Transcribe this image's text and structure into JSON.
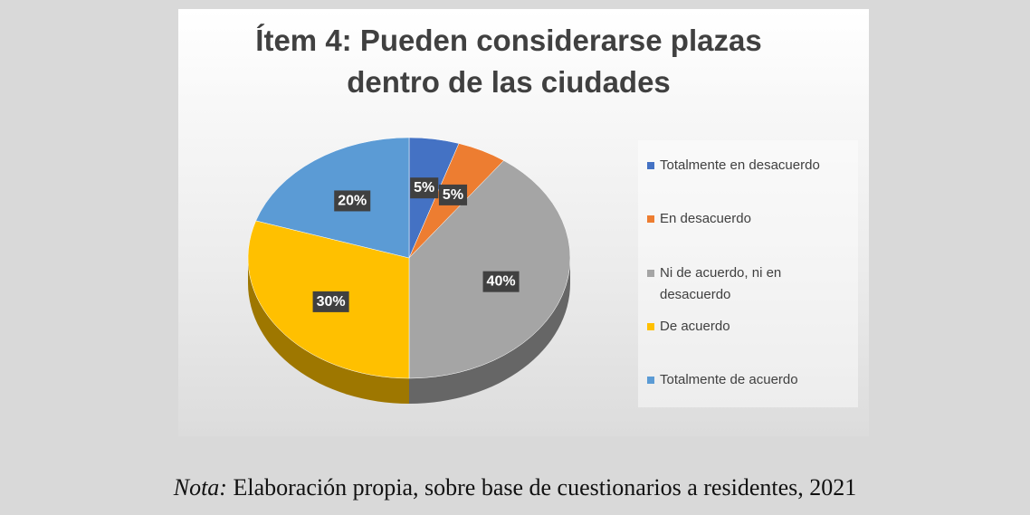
{
  "chart_data": {
    "type": "pie",
    "title": [
      "Ítem 4: Pueden considerarse plazas",
      "dentro de las ciudades"
    ],
    "series": [
      {
        "name": "Totalmente en desacuerdo",
        "color": "#4472c4"
      },
      {
        "name": "En desacuerdo",
        "color": "#ed7d31"
      },
      {
        "name": "Ni de acuerdo, ni en desacuerdo",
        "color": "#a5a5a5"
      },
      {
        "name": "De acuerdo",
        "color": "#ffc000"
      },
      {
        "name": "Totalmente de acuerdo",
        "color": "#5b9bd5"
      }
    ],
    "values": [
      5,
      5,
      40,
      30,
      20
    ],
    "value_labels": [
      "5%",
      "5%",
      "40%",
      "30%",
      "20%"
    ],
    "legend": "right"
  },
  "note": {
    "label": "Nota:",
    "text": "Elaboración propia, sobre base de cuestionarios a residentes, 2021"
  }
}
